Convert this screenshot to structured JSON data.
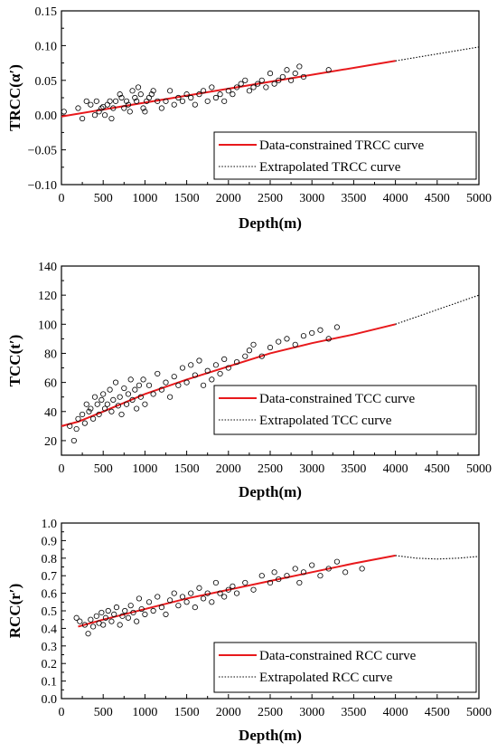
{
  "chart_data": [
    {
      "type": "scatter",
      "title": "",
      "xlabel": "Depth(m)",
      "ylabel": "TRCC(α′)",
      "xlim": [
        0,
        5000
      ],
      "ylim": [
        -0.1,
        0.15
      ],
      "xticks": [
        0,
        500,
        1000,
        1500,
        2000,
        2500,
        3000,
        3500,
        4000,
        4500,
        5000
      ],
      "yticks": [
        -0.1,
        -0.05,
        0.0,
        0.05,
        0.1,
        0.15
      ],
      "ytick_labels": [
        "−0.10",
        "−0.05",
        "0.00",
        "0.05",
        "0.10",
        "0.15"
      ],
      "legend_position": "bottom-right",
      "series": [
        {
          "name": "Data-constrained TRCC curve",
          "kind": "line",
          "style": "solid",
          "color": "#e8191c",
          "x": [
            0,
            4000
          ],
          "y": [
            -0.002,
            0.078
          ]
        },
        {
          "name": "Extrapolated TRCC curve",
          "kind": "line",
          "style": "dotted",
          "color": "#000000",
          "x": [
            4000,
            5000
          ],
          "y": [
            0.078,
            0.098
          ]
        },
        {
          "name": "",
          "kind": "points",
          "color": "#000000",
          "x": [
            30,
            200,
            250,
            300,
            350,
            400,
            420,
            450,
            480,
            500,
            520,
            550,
            580,
            600,
            620,
            650,
            700,
            720,
            750,
            780,
            800,
            820,
            850,
            880,
            900,
            920,
            950,
            980,
            1000,
            1020,
            1050,
            1080,
            1100,
            1150,
            1200,
            1250,
            1300,
            1350,
            1400,
            1450,
            1500,
            1550,
            1600,
            1650,
            1700,
            1750,
            1800,
            1850,
            1900,
            1950,
            2000,
            2050,
            2100,
            2150,
            2200,
            2250,
            2300,
            2350,
            2400,
            2450,
            2500,
            2550,
            2600,
            2650,
            2700,
            2750,
            2800,
            2850,
            2900,
            3200
          ],
          "y": [
            0.005,
            0.01,
            -0.005,
            0.02,
            0.015,
            0.0,
            0.02,
            0.005,
            0.01,
            0.012,
            0.0,
            0.015,
            0.02,
            -0.005,
            0.01,
            0.02,
            0.03,
            0.025,
            0.01,
            0.02,
            0.015,
            0.005,
            0.035,
            0.025,
            0.02,
            0.04,
            0.03,
            0.01,
            0.005,
            0.02,
            0.025,
            0.03,
            0.035,
            0.02,
            0.01,
            0.02,
            0.035,
            0.015,
            0.025,
            0.02,
            0.03,
            0.025,
            0.015,
            0.03,
            0.035,
            0.02,
            0.04,
            0.025,
            0.03,
            0.02,
            0.035,
            0.03,
            0.04,
            0.045,
            0.05,
            0.035,
            0.04,
            0.045,
            0.05,
            0.04,
            0.06,
            0.045,
            0.05,
            0.055,
            0.065,
            0.05,
            0.06,
            0.07,
            0.055,
            0.065
          ]
        }
      ]
    },
    {
      "type": "scatter",
      "title": "",
      "xlabel": "Depth(m)",
      "ylabel": "TCC(t′)",
      "xlim": [
        0,
        5000
      ],
      "ylim": [
        10,
        140
      ],
      "xticks": [
        0,
        500,
        1000,
        1500,
        2000,
        2500,
        3000,
        3500,
        4000,
        4500,
        5000
      ],
      "yticks": [
        20,
        40,
        60,
        80,
        100,
        120,
        140
      ],
      "ytick_labels": [
        "20",
        "40",
        "60",
        "80",
        "100",
        "120",
        "140"
      ],
      "legend_position": "bottom-right",
      "series": [
        {
          "name": "Data-constrained TCC curve",
          "kind": "line",
          "style": "solid",
          "color": "#e8191c",
          "x": [
            0,
            200,
            500,
            1000,
            1500,
            2000,
            2500,
            3000,
            3500,
            4000
          ],
          "y": [
            30,
            33,
            40,
            52,
            62,
            71,
            80,
            87,
            93,
            100
          ]
        },
        {
          "name": "Extrapolated TCC curve",
          "kind": "line",
          "style": "dotted",
          "color": "#000000",
          "x": [
            4000,
            5000
          ],
          "y": [
            100,
            120
          ]
        },
        {
          "name": "",
          "kind": "points",
          "color": "#000000",
          "x": [
            100,
            150,
            180,
            200,
            250,
            280,
            300,
            330,
            350,
            380,
            400,
            430,
            450,
            480,
            500,
            520,
            550,
            580,
            600,
            620,
            650,
            680,
            700,
            720,
            750,
            780,
            800,
            830,
            850,
            880,
            900,
            930,
            950,
            980,
            1000,
            1050,
            1100,
            1150,
            1200,
            1250,
            1300,
            1350,
            1400,
            1450,
            1500,
            1550,
            1600,
            1650,
            1700,
            1750,
            1800,
            1850,
            1900,
            1950,
            2000,
            2100,
            2200,
            2250,
            2300,
            2400,
            2500,
            2600,
            2700,
            2800,
            2900,
            3000,
            3100,
            3200,
            3300
          ],
          "y": [
            30,
            20,
            28,
            35,
            38,
            32,
            45,
            40,
            42,
            35,
            50,
            45,
            38,
            48,
            52,
            42,
            45,
            55,
            40,
            48,
            60,
            44,
            50,
            38,
            56,
            45,
            52,
            62,
            48,
            55,
            42,
            58,
            50,
            62,
            45,
            58,
            52,
            66,
            55,
            60,
            50,
            64,
            58,
            70,
            60,
            72,
            65,
            75,
            58,
            68,
            62,
            72,
            66,
            76,
            70,
            74,
            78,
            82,
            86,
            78,
            84,
            88,
            90,
            86,
            92,
            94,
            96,
            90,
            98
          ]
        }
      ]
    },
    {
      "type": "scatter",
      "title": "",
      "xlabel": "Depth(m)",
      "ylabel": "RCC(r′)",
      "xlim": [
        0,
        5000
      ],
      "ylim": [
        0.0,
        1.0
      ],
      "xticks": [
        0,
        500,
        1000,
        1500,
        2000,
        2500,
        3000,
        3500,
        4000,
        4500,
        5000
      ],
      "yticks": [
        0.0,
        0.1,
        0.2,
        0.3,
        0.4,
        0.5,
        0.6,
        0.7,
        0.8,
        0.9,
        1.0
      ],
      "ytick_labels": [
        "0.0",
        "0.1",
        "0.2",
        "0.3",
        "0.4",
        "0.5",
        "0.6",
        "0.7",
        "0.8",
        "0.9",
        "1.0"
      ],
      "legend_position": "bottom-right",
      "series": [
        {
          "name": "Data-constrained RCC curve",
          "kind": "line",
          "style": "solid",
          "color": "#e8191c",
          "x": [
            200,
            500,
            1000,
            1500,
            2000,
            2500,
            3000,
            3500,
            4000
          ],
          "y": [
            0.41,
            0.45,
            0.51,
            0.57,
            0.62,
            0.67,
            0.72,
            0.77,
            0.815
          ]
        },
        {
          "name": "Extrapolated RCC curve",
          "kind": "line",
          "style": "dotted",
          "color": "#000000",
          "x": [
            4000,
            4250,
            4500,
            4750,
            5000
          ],
          "y": [
            0.815,
            0.8,
            0.795,
            0.8,
            0.81
          ]
        },
        {
          "name": "",
          "kind": "points",
          "color": "#000000",
          "x": [
            180,
            220,
            280,
            320,
            350,
            380,
            420,
            450,
            480,
            500,
            530,
            560,
            600,
            630,
            660,
            700,
            730,
            760,
            800,
            830,
            860,
            900,
            930,
            960,
            1000,
            1050,
            1100,
            1150,
            1200,
            1250,
            1300,
            1350,
            1400,
            1450,
            1500,
            1550,
            1600,
            1650,
            1700,
            1750,
            1800,
            1850,
            1900,
            1950,
            2000,
            2050,
            2100,
            2200,
            2300,
            2400,
            2500,
            2550,
            2600,
            2700,
            2800,
            2850,
            2900,
            3000,
            3100,
            3200,
            3300,
            3400,
            3600
          ],
          "y": [
            0.46,
            0.44,
            0.42,
            0.37,
            0.45,
            0.41,
            0.47,
            0.43,
            0.49,
            0.42,
            0.46,
            0.5,
            0.44,
            0.48,
            0.52,
            0.42,
            0.47,
            0.5,
            0.46,
            0.53,
            0.49,
            0.44,
            0.57,
            0.51,
            0.48,
            0.55,
            0.5,
            0.58,
            0.52,
            0.48,
            0.56,
            0.6,
            0.53,
            0.58,
            0.55,
            0.6,
            0.52,
            0.63,
            0.57,
            0.6,
            0.55,
            0.66,
            0.6,
            0.58,
            0.62,
            0.64,
            0.6,
            0.66,
            0.62,
            0.7,
            0.66,
            0.72,
            0.68,
            0.7,
            0.74,
            0.66,
            0.72,
            0.76,
            0.7,
            0.74,
            0.78,
            0.72,
            0.74
          ]
        }
      ]
    }
  ]
}
